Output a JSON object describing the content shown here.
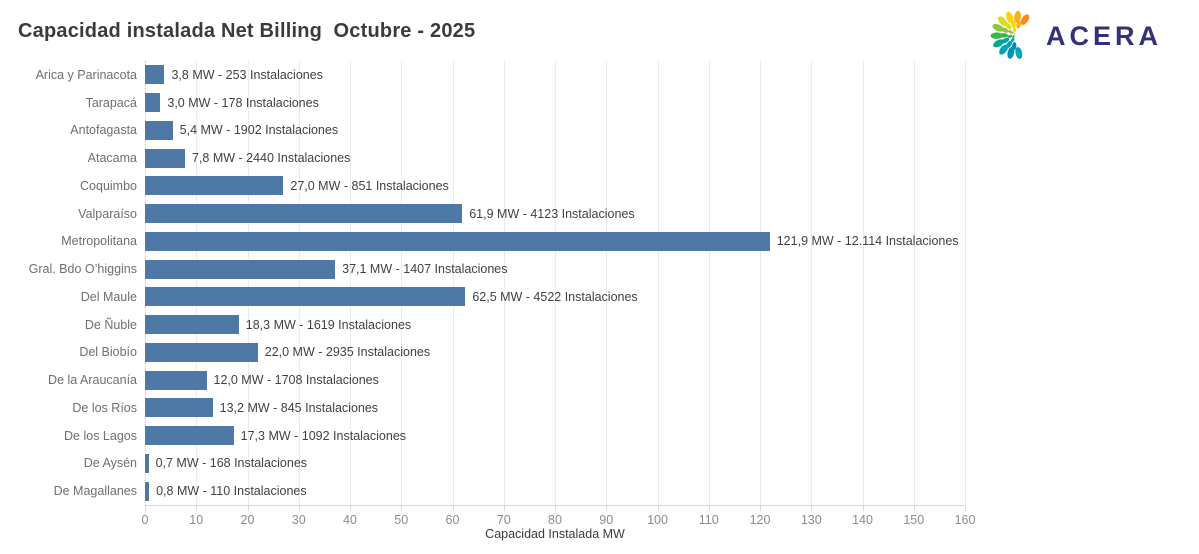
{
  "header": {
    "title": "Capacidad instalada Net Billing  Octubre - 2025",
    "logo": {
      "text": "ACERA",
      "text_color": "#34317b"
    }
  },
  "chart_data": {
    "type": "bar",
    "orientation": "horizontal",
    "title": "Capacidad instalada Net Billing  Octubre - 2025",
    "xlabel": "Capacidad Instalada MW",
    "ylabel": "",
    "xlim": [
      0,
      160
    ],
    "x_ticks": [
      0,
      10,
      20,
      30,
      40,
      50,
      60,
      70,
      80,
      90,
      100,
      110,
      120,
      130,
      140,
      150,
      160
    ],
    "grid": "vertical-light",
    "legend": "none",
    "bar_color": "#4e79a7",
    "categories": [
      "Arica y Parinacota",
      "Tarapacá",
      "Antofagasta",
      "Atacama",
      "Coquimbo",
      "Valparaíso",
      "Metropolitana",
      "Gral. Bdo O’higgins",
      "Del Maule",
      "De Ñuble",
      "Del Biobío",
      "De la Araucanía",
      "De los Ríos",
      "De los Lagos",
      "De Aysén",
      "De Magallanes"
    ],
    "values": [
      3.8,
      3.0,
      5.4,
      7.8,
      27.0,
      61.9,
      121.9,
      37.1,
      62.5,
      18.3,
      22.0,
      12.0,
      13.2,
      17.3,
      0.7,
      0.8
    ],
    "installations": [
      253,
      178,
      1902,
      2440,
      851,
      4123,
      12114,
      1407,
      4522,
      1619,
      2935,
      1708,
      845,
      1092,
      168,
      110
    ],
    "bar_labels": [
      "3,8 MW -  253 Instalaciones",
      "3,0 MW -  178 Instalaciones",
      "5,4 MW -  1902 Instalaciones",
      "7,8 MW -  2440 Instalaciones",
      "27,0 MW -  851 Instalaciones",
      "61,9 MW -  4123 Instalaciones",
      "121,9 MW -  12.114 Instalaciones",
      "37,1 MW -  1407 Instalaciones",
      "62,5 MW -  4522 Instalaciones",
      "18,3 MW -  1619 Instalaciones",
      "22,0 MW -  2935 Instalaciones",
      "12,0 MW -  1708 Instalaciones",
      "13,2 MW -  845 Instalaciones",
      "17,3 MW -  1092 Instalaciones",
      "0,7 MW -  168 Instalaciones",
      "0,8 MW -  110 Instalaciones"
    ]
  }
}
